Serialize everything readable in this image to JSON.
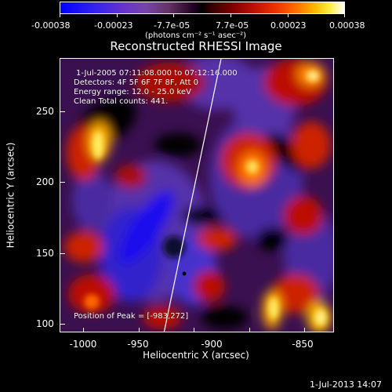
{
  "colorbar": {
    "tick_labels": [
      "-0.00038",
      "-0.00023",
      "-7.7e-05",
      "7.7e-05",
      "0.00023",
      "0.00038"
    ],
    "units": "(photons cm⁻² s⁻¹ asec⁻²)"
  },
  "title": "Reconstructed RHESSI Image",
  "info": {
    "line1": "1-Jul-2005 07:11:08.000 to 07:12:16.000",
    "line2": "Detectors: 4F 5F 6F 7F 8F, Att 0",
    "line3": "Energy range: 12.0 - 25.0 keV",
    "line4": "Clean     Total counts: 441.",
    "peak": "Position of Peak = [-983,272]"
  },
  "x_axis": {
    "title": "Heliocentric X (arcsec)",
    "tick_labels": [
      "-1000",
      "-950",
      "-900",
      "-850"
    ]
  },
  "y_axis": {
    "title": "Heliocentric Y (arcsec)",
    "tick_labels": [
      "250",
      "200",
      "150",
      "100"
    ]
  },
  "footer_timestamp": "1-Jul-2013 14:07"
}
